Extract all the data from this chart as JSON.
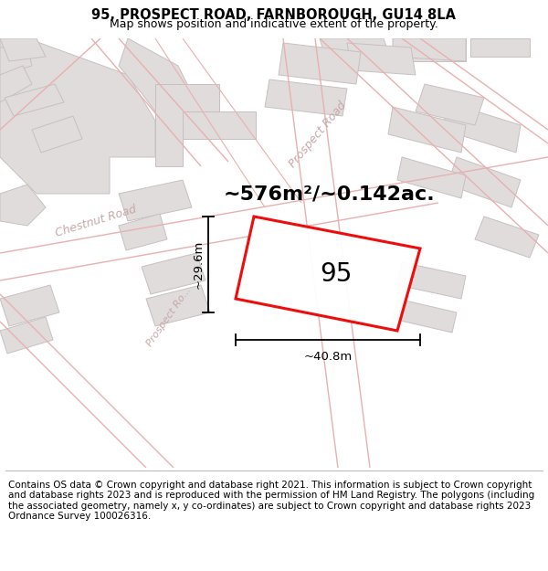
{
  "title": "95, PROSPECT ROAD, FARNBOROUGH, GU14 8LA",
  "subtitle": "Map shows position and indicative extent of the property.",
  "footer": "Contains OS data © Crown copyright and database right 2021. This information is subject to Crown copyright and database rights 2023 and is reproduced with the permission of HM Land Registry. The polygons (including the associated geometry, namely x, y co-ordinates) are subject to Crown copyright and database rights 2023 Ordnance Survey 100026316.",
  "area_text": "~576m²/~0.142ac.",
  "width_label": "~40.8m",
  "height_label": "~29.6m",
  "plot_number": "95",
  "map_bg": "#f7f3f3",
  "building_fill": "#e0dcdc",
  "building_edge": "#c8c0c0",
  "road_line_color": "#e8b0b0",
  "plot_color": "#ee0000",
  "title_fontsize": 10.5,
  "subtitle_fontsize": 9,
  "footer_fontsize": 7.5,
  "area_fontsize": 16,
  "dim_fontsize": 9.5,
  "plot_num_fontsize": 20,
  "road_label_color": "#c8a8a8",
  "road_label_fontsize": 8
}
